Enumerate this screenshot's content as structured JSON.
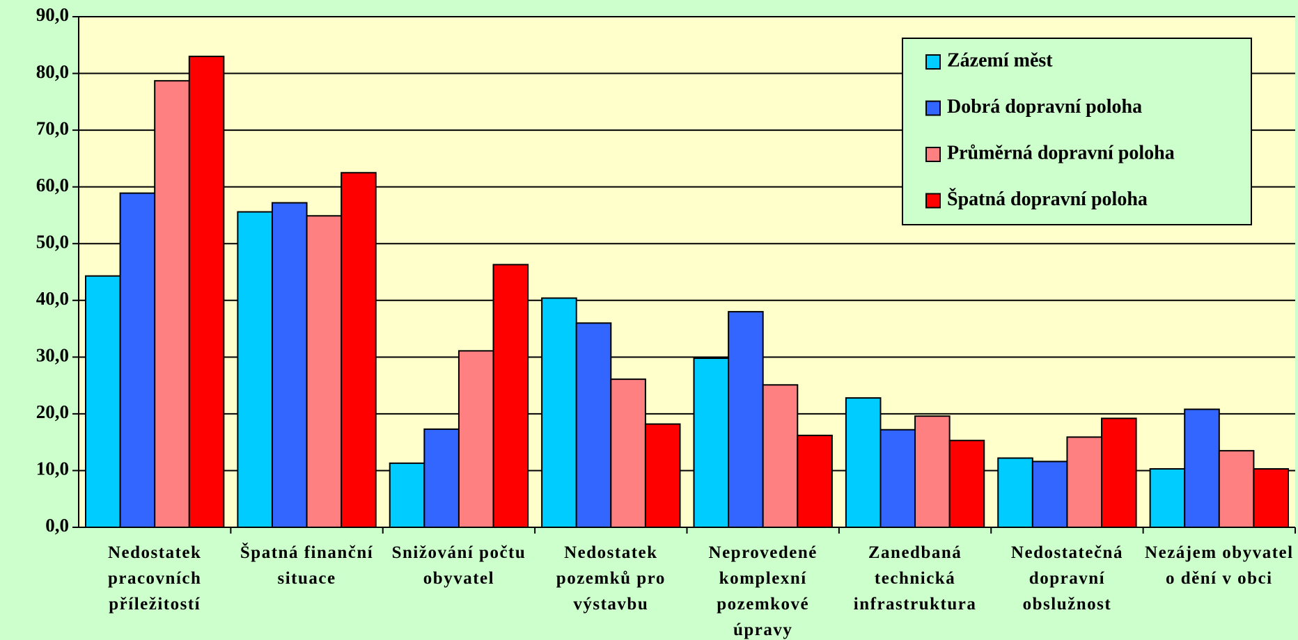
{
  "chart_data": {
    "type": "bar",
    "categories": [
      "Nedostatek pracovních příležitostí",
      "Špatná finanční situace",
      "Snižování počtu obyvatel",
      "Nedostatek pozemků pro výstavbu",
      "Neprovedené komplexní pozemkové úpravy",
      "Zanedbaná technická infrastruktura",
      "Nedostatečná dopravní obslužnost",
      "Nezájem obyvatel o dění v obci"
    ],
    "series": [
      {
        "name": "Zázemí měst",
        "color": "#00ccff",
        "values": [
          44.3,
          55.6,
          11.3,
          40.4,
          29.8,
          22.8,
          12.2,
          10.3
        ]
      },
      {
        "name": "Dobrá dopravní poloha",
        "color": "#3366ff",
        "values": [
          58.9,
          57.2,
          17.3,
          36.0,
          38.0,
          17.2,
          11.6,
          20.8
        ]
      },
      {
        "name": "Průměrná dopravní poloha",
        "color": "#ff8080",
        "values": [
          78.7,
          54.9,
          31.1,
          26.1,
          25.1,
          19.6,
          15.9,
          13.5
        ]
      },
      {
        "name": "Špatná dopravní poloha",
        "color": "#ff0000",
        "values": [
          83.0,
          62.5,
          46.3,
          18.2,
          16.2,
          15.3,
          19.2,
          10.3
        ]
      }
    ],
    "ylim": [
      0,
      90
    ],
    "yticks": [
      {
        "value": 0,
        "label": "0,0"
      },
      {
        "value": 10,
        "label": "10,0"
      },
      {
        "value": 20,
        "label": "20,0"
      },
      {
        "value": 30,
        "label": "30,0"
      },
      {
        "value": 40,
        "label": "40,0"
      },
      {
        "value": 50,
        "label": "50,0"
      },
      {
        "value": 60,
        "label": "60,0"
      },
      {
        "value": 70,
        "label": "70,0"
      },
      {
        "value": 80,
        "label": "80,0"
      },
      {
        "value": 90,
        "label": "90,0"
      }
    ],
    "grid": true,
    "legend": "upper right"
  }
}
